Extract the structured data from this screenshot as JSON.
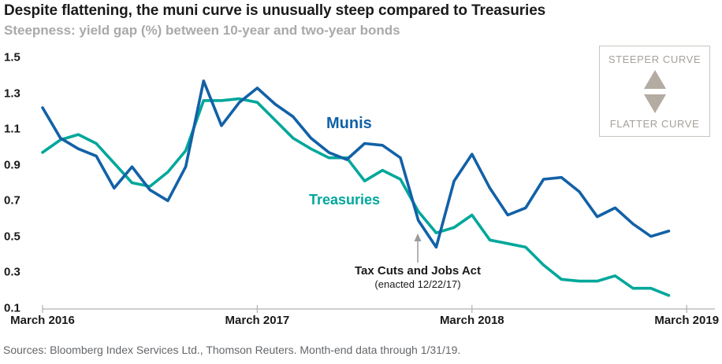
{
  "header": {
    "title": "Despite flattening, the muni curve is unusually steep compared to Treasuries",
    "subtitle": "Steepness: yield gap (%) between 10-year and two-year bonds"
  },
  "series_labels": {
    "munis": "Munis",
    "treasuries": "Treasuries"
  },
  "annotation": {
    "line1": "Tax Cuts and Jobs Act",
    "line2": "(enacted 12/22/17)"
  },
  "legend_box": {
    "steeper_label": "STEEPER CURVE",
    "flatter_label": "FLATTER CURVE"
  },
  "footer": {
    "sources": "Sources: Bloomberg Index Services Ltd., Thomson Reuters. Month-end data through 1/31/19."
  },
  "colors": {
    "munis": "#1261a7",
    "treasuries": "#00a79b",
    "axis": "#b3b0ae",
    "annotation_arrow": "#9b9b9b",
    "legend_accent": "#b4aba3",
    "text_dark": "#1a1a1a"
  },
  "chart_data": {
    "type": "line",
    "title": "Despite flattening, the muni curve is unusually steep compared to Treasuries",
    "subtitle": "Steepness: yield gap (%) between 10-year and two-year bonds",
    "x": [
      "Feb 2016",
      "Mar 2016",
      "Apr 2016",
      "May 2016",
      "Jun 2016",
      "Jul 2016",
      "Aug 2016",
      "Sep 2016",
      "Oct 2016",
      "Nov 2016",
      "Dec 2016",
      "Jan 2017",
      "Feb 2017",
      "Mar 2017",
      "Apr 2017",
      "May 2017",
      "Jun 2017",
      "Jul 2017",
      "Aug 2017",
      "Sep 2017",
      "Oct 2017",
      "Nov 2017",
      "Dec 2017",
      "Jan 2018",
      "Feb 2018",
      "Mar 2018",
      "Apr 2018",
      "May 2018",
      "Jun 2018",
      "Jul 2018",
      "Aug 2018",
      "Sep 2018",
      "Oct 2018",
      "Nov 2018",
      "Dec 2018",
      "Jan 2019"
    ],
    "series": [
      {
        "name": "Munis",
        "values": [
          1.22,
          1.05,
          0.99,
          0.95,
          0.77,
          0.89,
          0.76,
          0.7,
          0.89,
          1.37,
          1.12,
          1.25,
          1.33,
          1.24,
          1.17,
          1.05,
          0.97,
          0.93,
          1.02,
          1.01,
          0.94,
          0.59,
          0.44,
          0.81,
          0.96,
          0.77,
          0.62,
          0.66,
          0.82,
          0.83,
          0.75,
          0.61,
          0.66,
          0.57,
          0.5,
          0.53
        ]
      },
      {
        "name": "Treasuries",
        "values": [
          0.97,
          1.04,
          1.07,
          1.02,
          0.91,
          0.8,
          0.78,
          0.86,
          0.98,
          1.26,
          1.26,
          1.27,
          1.25,
          1.15,
          1.05,
          0.99,
          0.94,
          0.94,
          0.81,
          0.87,
          0.82,
          0.64,
          0.52,
          0.55,
          0.62,
          0.48,
          0.46,
          0.44,
          0.34,
          0.26,
          0.25,
          0.25,
          0.28,
          0.21,
          0.21,
          0.17
        ]
      }
    ],
    "y_ticks": [
      1.5,
      1.3,
      1.1,
      0.9,
      0.7,
      0.5,
      0.3,
      0.1
    ],
    "ylim": [
      0.1,
      1.5
    ],
    "x_ticks": {
      "labels": [
        "March 2016",
        "March 2017",
        "March 2018",
        "March 2019"
      ],
      "month_indices": [
        0,
        12,
        24,
        36
      ]
    },
    "grid": false,
    "legend_position": "inline-labels"
  }
}
